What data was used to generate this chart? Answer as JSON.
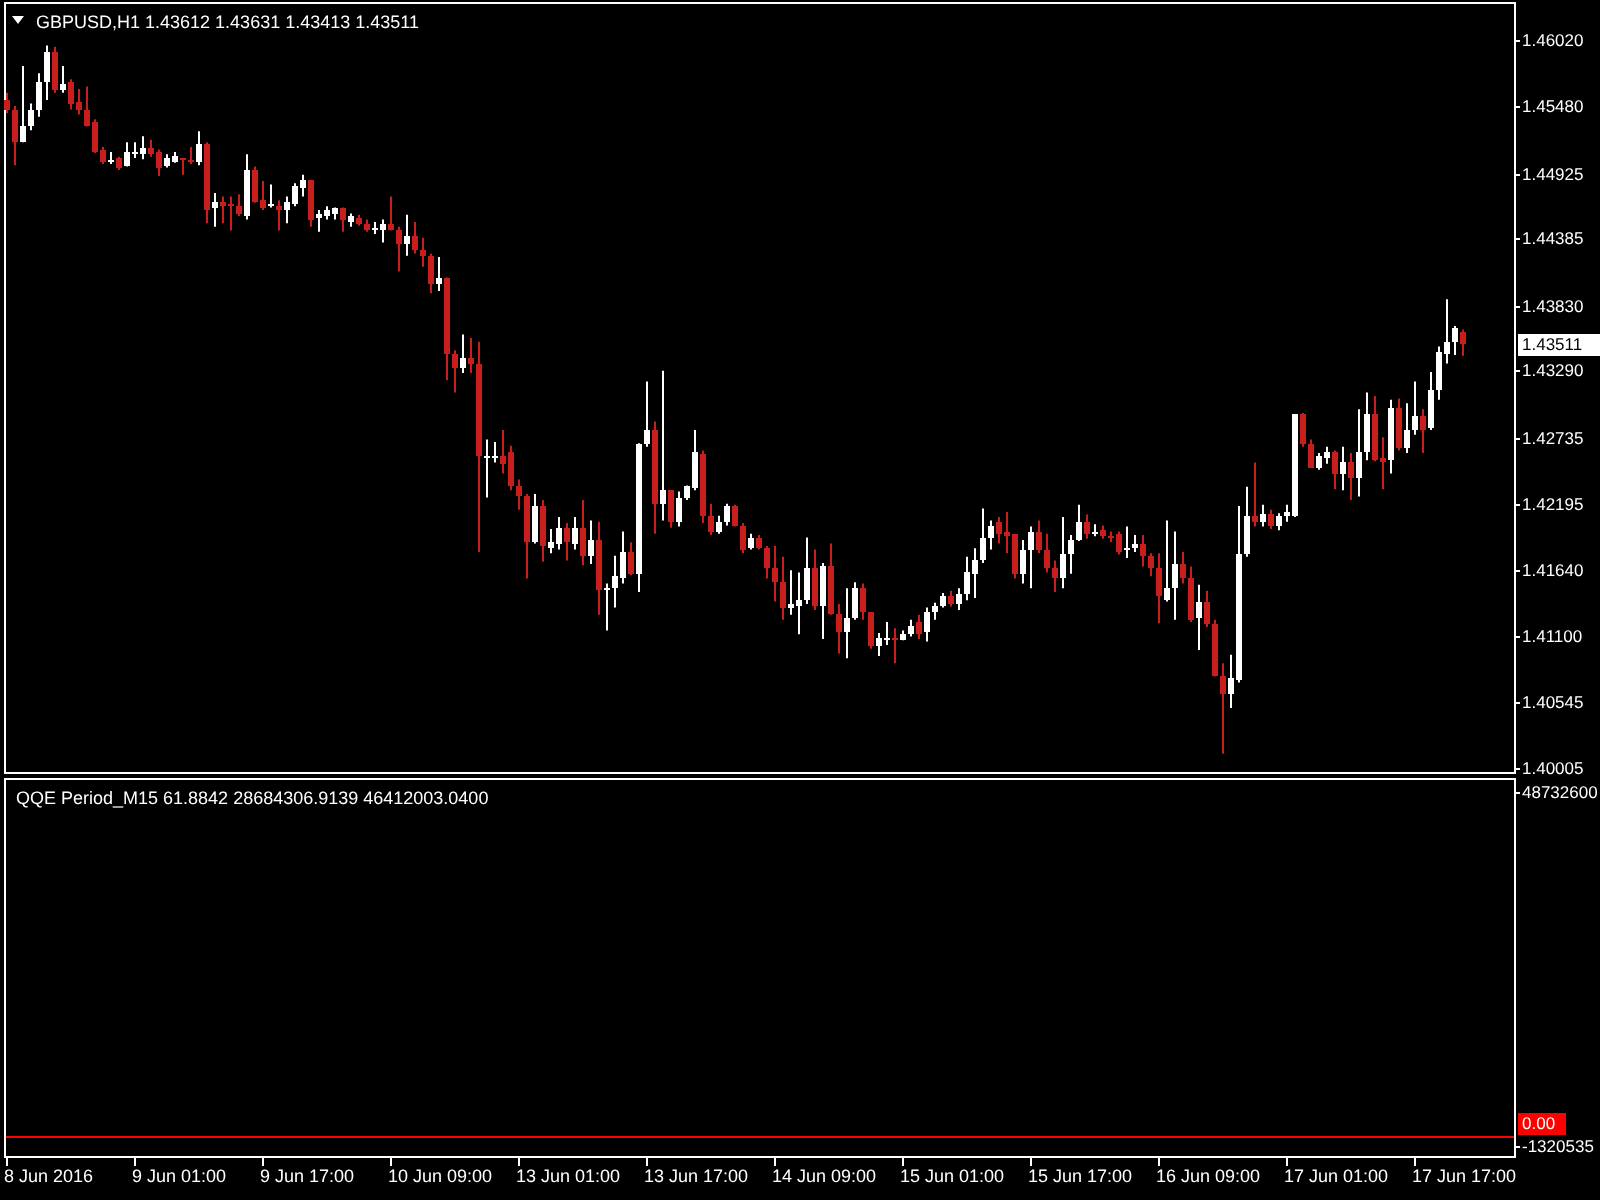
{
  "chart_data": [
    {
      "type": "candlestick",
      "title": "GBPUSD,H1 1.43612 1.43631 1.43413 1.43511",
      "categories": [
        null,
        null,
        null,
        null,
        null,
        null,
        null,
        null,
        null,
        null,
        null,
        null,
        null,
        null,
        null,
        null,
        null,
        null,
        null,
        null,
        null,
        null,
        null,
        null,
        null,
        null,
        null,
        null,
        null,
        null,
        null,
        null,
        null,
        null,
        null,
        null,
        null,
        null,
        null,
        null,
        null,
        null,
        null,
        null,
        null,
        null,
        null,
        null,
        null,
        null,
        null,
        null,
        null,
        null,
        null,
        null,
        null,
        null,
        null,
        null,
        null,
        null,
        null,
        null,
        null,
        null,
        null,
        null,
        null,
        null,
        null,
        null,
        null,
        null,
        null,
        null,
        null,
        null,
        null,
        null,
        null,
        null,
        null,
        null,
        null,
        null,
        null,
        null,
        null,
        null,
        null,
        null,
        null,
        null,
        null,
        null,
        null,
        null,
        null,
        null,
        null,
        null,
        null,
        null,
        null,
        null,
        null,
        null,
        null,
        null,
        null,
        null,
        null,
        null,
        null,
        null,
        null,
        null,
        null,
        null,
        null,
        null,
        null,
        null,
        null,
        null,
        null,
        null,
        null,
        null,
        null,
        null,
        null,
        null,
        null,
        null,
        null,
        null,
        null,
        null,
        null,
        null,
        null,
        null,
        null,
        null,
        null,
        null,
        null,
        null,
        null,
        null,
        null,
        null,
        null,
        null,
        null,
        null,
        null,
        null,
        null,
        null,
        null,
        null,
        null,
        null,
        null,
        null,
        null,
        null,
        null,
        null,
        null,
        null,
        null,
        null,
        null,
        null,
        null,
        null,
        null,
        null,
        null
      ],
      "ohlc": [
        [
          1.4553,
          1.4559,
          1.4542,
          1.4545
        ],
        [
          1.4545,
          1.4548,
          1.4499,
          1.4519
        ],
        [
          1.4519,
          1.4581,
          1.4518,
          1.4532
        ],
        [
          1.4531,
          1.455,
          1.4528,
          1.4545
        ],
        [
          1.4545,
          1.4575,
          1.4539,
          1.4567
        ],
        [
          1.4567,
          1.4598,
          1.4553,
          1.4593
        ],
        [
          1.4593,
          1.4597,
          1.4559,
          1.4562
        ],
        [
          1.4562,
          1.4581,
          1.4559,
          1.4566
        ],
        [
          1.4567,
          1.457,
          1.4545,
          1.455
        ],
        [
          1.4552,
          1.4562,
          1.4541,
          1.4544
        ],
        [
          1.4545,
          1.4564,
          1.4531,
          1.4532
        ],
        [
          1.4534,
          1.4537,
          1.4509,
          1.451
        ],
        [
          1.4512,
          1.4514,
          1.45,
          1.4501
        ],
        [
          1.4503,
          1.451,
          1.45,
          1.4504
        ],
        [
          1.4505,
          1.4506,
          1.4495,
          1.4496
        ],
        [
          1.4499,
          1.4518,
          1.4498,
          1.451
        ],
        [
          1.4509,
          1.4518,
          1.4505,
          1.451
        ],
        [
          1.4509,
          1.4523,
          1.4504,
          1.4514
        ],
        [
          1.4514,
          1.452,
          1.4506,
          1.4508
        ],
        [
          1.451,
          1.4512,
          1.449,
          1.4497
        ],
        [
          1.4499,
          1.4508,
          1.4497,
          1.4505
        ],
        [
          1.4502,
          1.451,
          1.4501,
          1.4506
        ],
        [
          1.4505,
          1.4505,
          1.4491,
          1.4504
        ],
        [
          1.4504,
          1.4514,
          1.45,
          1.4501
        ],
        [
          1.4501,
          1.4527,
          1.4499,
          1.4517
        ],
        [
          1.4517,
          1.4518,
          1.4451,
          1.4462
        ],
        [
          1.4463,
          1.4476,
          1.4448,
          1.4469
        ],
        [
          1.4469,
          1.4473,
          1.4451,
          1.4465
        ],
        [
          1.4467,
          1.4473,
          1.4445,
          1.4466
        ],
        [
          1.4465,
          1.4475,
          1.4457,
          1.4458
        ],
        [
          1.4457,
          1.4508,
          1.4454,
          1.4495
        ],
        [
          1.4495,
          1.4498,
          1.4468,
          1.4469
        ],
        [
          1.447,
          1.4486,
          1.4462,
          1.4464
        ],
        [
          1.4466,
          1.4483,
          1.4464,
          1.4467
        ],
        [
          1.4466,
          1.447,
          1.4445,
          1.4462
        ],
        [
          1.4462,
          1.4473,
          1.4451,
          1.4468
        ],
        [
          1.4467,
          1.4484,
          1.4465,
          1.4481
        ],
        [
          1.448,
          1.4491,
          1.4473,
          1.4486
        ],
        [
          1.4486,
          1.4486,
          1.4448,
          1.4453
        ],
        [
          1.4455,
          1.4462,
          1.4444,
          1.4459
        ],
        [
          1.4457,
          1.4465,
          1.4454,
          1.4462
        ],
        [
          1.4459,
          1.4464,
          1.4454,
          1.4463
        ],
        [
          1.4463,
          1.4464,
          1.4444,
          1.4453
        ],
        [
          1.4452,
          1.4459,
          1.4448,
          1.4457
        ],
        [
          1.4456,
          1.4458,
          1.4449,
          1.4451
        ],
        [
          1.4451,
          1.4454,
          1.4444,
          1.4445
        ],
        [
          1.4446,
          1.4452,
          1.4442,
          1.4447
        ],
        [
          1.4445,
          1.4454,
          1.4435,
          1.4451
        ],
        [
          1.445,
          1.4473,
          1.4445,
          1.4446
        ],
        [
          1.4446,
          1.4448,
          1.4411,
          1.4433
        ],
        [
          1.4433,
          1.4458,
          1.4424,
          1.4441
        ],
        [
          1.444,
          1.4452,
          1.4426,
          1.4429
        ],
        [
          1.4429,
          1.4439,
          1.4415,
          1.4424
        ],
        [
          1.4424,
          1.4426,
          1.4393,
          1.44
        ],
        [
          1.44,
          1.4423,
          1.4395,
          1.4406
        ],
        [
          1.4406,
          1.4406,
          1.4321,
          1.4343
        ],
        [
          1.4343,
          1.4346,
          1.4311,
          1.4331
        ],
        [
          1.4331,
          1.4359,
          1.4327,
          1.434
        ],
        [
          1.434,
          1.4356,
          1.4327,
          1.4334
        ],
        [
          1.4334,
          1.4353,
          1.4179,
          1.4258
        ],
        [
          1.4258,
          1.4272,
          1.4224,
          1.4259
        ],
        [
          1.4258,
          1.427,
          1.4253,
          1.4259
        ],
        [
          1.4259,
          1.428,
          1.4244,
          1.4251
        ],
        [
          1.4262,
          1.4267,
          1.423,
          1.4234
        ],
        [
          1.4234,
          1.4239,
          1.4214,
          1.4226
        ],
        [
          1.4226,
          1.4227,
          1.4157,
          1.4188
        ],
        [
          1.4188,
          1.4227,
          1.4186,
          1.4217
        ],
        [
          1.4217,
          1.4222,
          1.4171,
          1.4184
        ],
        [
          1.4182,
          1.4198,
          1.4178,
          1.4187
        ],
        [
          1.4186,
          1.4208,
          1.4181,
          1.4199
        ],
        [
          1.4199,
          1.4203,
          1.4172,
          1.4187
        ],
        [
          1.4186,
          1.4208,
          1.4181,
          1.4199
        ],
        [
          1.4199,
          1.4222,
          1.4168,
          1.4176
        ],
        [
          1.4176,
          1.4205,
          1.4169,
          1.4189
        ],
        [
          1.4189,
          1.4204,
          1.4127,
          1.4147
        ],
        [
          1.4149,
          1.4153,
          1.4114,
          1.415
        ],
        [
          1.415,
          1.4176,
          1.4133,
          1.4159
        ],
        [
          1.4158,
          1.4196,
          1.4153,
          1.4179
        ],
        [
          1.4179,
          1.4187,
          1.416,
          1.4161
        ],
        [
          1.416,
          1.4269,
          1.4146,
          1.4269
        ],
        [
          1.4269,
          1.432,
          1.4266,
          1.428
        ],
        [
          1.428,
          1.4287,
          1.4194,
          1.4219
        ],
        [
          1.4219,
          1.4329,
          1.4205,
          1.423
        ],
        [
          1.423,
          1.423,
          1.4199,
          1.4204
        ],
        [
          1.4204,
          1.4229,
          1.42,
          1.4224
        ],
        [
          1.4224,
          1.4234,
          1.4222,
          1.4234
        ],
        [
          1.4232,
          1.428,
          1.423,
          1.4262
        ],
        [
          1.426,
          1.4263,
          1.4203,
          1.4209
        ],
        [
          1.4209,
          1.4219,
          1.4193,
          1.4196
        ],
        [
          1.4196,
          1.4209,
          1.4194,
          1.4204
        ],
        [
          1.4203,
          1.4219,
          1.4201,
          1.4217
        ],
        [
          1.4217,
          1.4218,
          1.42,
          1.4201
        ],
        [
          1.4201,
          1.4203,
          1.4178,
          1.4181
        ],
        [
          1.4182,
          1.4194,
          1.4181,
          1.4191
        ],
        [
          1.4191,
          1.4193,
          1.4181,
          1.4183
        ],
        [
          1.4183,
          1.4184,
          1.4157,
          1.4165
        ],
        [
          1.4165,
          1.4184,
          1.4138,
          1.4155
        ],
        [
          1.4155,
          1.4175,
          1.4123,
          1.4132
        ],
        [
          1.4132,
          1.4164,
          1.4127,
          1.4136
        ],
        [
          1.4135,
          1.4162,
          1.4111,
          1.414
        ],
        [
          1.414,
          1.4191,
          1.4136,
          1.4165
        ],
        [
          1.4165,
          1.4181,
          1.4131,
          1.4134
        ],
        [
          1.4134,
          1.417,
          1.4107,
          1.4167
        ],
        [
          1.4167,
          1.4186,
          1.4127,
          1.4128
        ],
        [
          1.4128,
          1.4136,
          1.4095,
          1.4112
        ],
        [
          1.4112,
          1.4149,
          1.4091,
          1.4125
        ],
        [
          1.4125,
          1.4154,
          1.4123,
          1.4149
        ],
        [
          1.4149,
          1.4153,
          1.4123,
          1.4129
        ],
        [
          1.4129,
          1.4129,
          1.4099,
          1.4102
        ],
        [
          1.4102,
          1.4112,
          1.4093,
          1.4108
        ],
        [
          1.4107,
          1.4121,
          1.4102,
          1.4108
        ],
        [
          1.4108,
          1.4116,
          1.4087,
          1.4107
        ],
        [
          1.4107,
          1.4114,
          1.4106,
          1.4111
        ],
        [
          1.4111,
          1.4123,
          1.4109,
          1.4117
        ],
        [
          1.4121,
          1.4127,
          1.4107,
          1.4111
        ],
        [
          1.4112,
          1.4133,
          1.4105,
          1.4129
        ],
        [
          1.4129,
          1.4137,
          1.4123,
          1.4135
        ],
        [
          1.4134,
          1.4145,
          1.4133,
          1.4143
        ],
        [
          1.4143,
          1.4147,
          1.4134,
          1.4136
        ],
        [
          1.4136,
          1.4149,
          1.4131,
          1.4145
        ],
        [
          1.4144,
          1.4175,
          1.4139,
          1.4162
        ],
        [
          1.4161,
          1.4182,
          1.4141,
          1.4172
        ],
        [
          1.4172,
          1.4215,
          1.417,
          1.419
        ],
        [
          1.419,
          1.4205,
          1.4181,
          1.4201
        ],
        [
          1.4203,
          1.4208,
          1.4186,
          1.4194
        ],
        [
          1.4196,
          1.4212,
          1.4178,
          1.4192
        ],
        [
          1.4194,
          1.4194,
          1.4157,
          1.416
        ],
        [
          1.416,
          1.4189,
          1.4153,
          1.4181
        ],
        [
          1.4181,
          1.42,
          1.4149,
          1.4196
        ],
        [
          1.4196,
          1.4205,
          1.4178,
          1.4181
        ],
        [
          1.4181,
          1.4194,
          1.4162,
          1.4166
        ],
        [
          1.4166,
          1.4172,
          1.4146,
          1.4158
        ],
        [
          1.4158,
          1.4208,
          1.4149,
          1.4177
        ],
        [
          1.4177,
          1.4193,
          1.4161,
          1.4189
        ],
        [
          1.4189,
          1.4218,
          1.4188,
          1.4203
        ],
        [
          1.4203,
          1.421,
          1.419,
          1.4194
        ],
        [
          1.4194,
          1.4202,
          1.4192,
          1.4195
        ],
        [
          1.4198,
          1.4201,
          1.419,
          1.4193
        ],
        [
          1.4193,
          1.4196,
          1.4187,
          1.419
        ],
        [
          1.4194,
          1.4196,
          1.4177,
          1.4179
        ],
        [
          1.4181,
          1.42,
          1.4174,
          1.4182
        ],
        [
          1.4182,
          1.4193,
          1.4179,
          1.4186
        ],
        [
          1.4186,
          1.4193,
          1.4167,
          1.4175
        ],
        [
          1.4175,
          1.4178,
          1.4159,
          1.4165
        ],
        [
          1.4165,
          1.4178,
          1.412,
          1.4142
        ],
        [
          1.414,
          1.4205,
          1.4138,
          1.415
        ],
        [
          1.415,
          1.4196,
          1.4123,
          1.4169
        ],
        [
          1.4169,
          1.4179,
          1.4153,
          1.4158
        ],
        [
          1.4158,
          1.4167,
          1.4121,
          1.4123
        ],
        [
          1.4124,
          1.4152,
          1.4098,
          1.4137
        ],
        [
          1.4137,
          1.4147,
          1.4117,
          1.412
        ],
        [
          1.412,
          1.4123,
          1.4076,
          1.4077
        ],
        [
          1.4077,
          1.4087,
          1.4012,
          1.4062
        ],
        [
          1.4062,
          1.4094,
          1.405,
          1.4074
        ],
        [
          1.4073,
          1.4217,
          1.4071,
          1.4177
        ],
        [
          1.4177,
          1.4233,
          1.4175,
          1.4208
        ],
        [
          1.4208,
          1.4253,
          1.42,
          1.4204
        ],
        [
          1.4204,
          1.4218,
          1.42,
          1.4211
        ],
        [
          1.4211,
          1.4214,
          1.4198,
          1.42
        ],
        [
          1.42,
          1.4211,
          1.4197,
          1.4209
        ],
        [
          1.4209,
          1.4218,
          1.4204,
          1.4212
        ],
        [
          1.4209,
          1.4293,
          1.4208,
          1.4293
        ],
        [
          1.4293,
          1.4294,
          1.4266,
          1.4269
        ],
        [
          1.4269,
          1.4272,
          1.4249,
          1.4249
        ],
        [
          1.4249,
          1.4261,
          1.4247,
          1.4258
        ],
        [
          1.4256,
          1.4266,
          1.4252,
          1.4261
        ],
        [
          1.4261,
          1.4263,
          1.4231,
          1.4243
        ],
        [
          1.4243,
          1.4266,
          1.423,
          1.4253
        ],
        [
          1.4253,
          1.4261,
          1.4222,
          1.424
        ],
        [
          1.424,
          1.4297,
          1.4225,
          1.4261
        ],
        [
          1.4261,
          1.4311,
          1.4255,
          1.4293
        ],
        [
          1.4293,
          1.4308,
          1.4254,
          1.4255
        ],
        [
          1.4257,
          1.4274,
          1.4231,
          1.4254
        ],
        [
          1.4255,
          1.4305,
          1.4244,
          1.4298
        ],
        [
          1.4298,
          1.4306,
          1.4263,
          1.4265
        ],
        [
          1.4265,
          1.4302,
          1.4261,
          1.428
        ],
        [
          1.428,
          1.432,
          1.4276,
          1.4291
        ],
        [
          1.4291,
          1.4297,
          1.4261,
          1.428
        ],
        [
          1.4282,
          1.4328,
          1.428,
          1.4313
        ],
        [
          1.4313,
          1.4349,
          1.4305,
          1.4345
        ],
        [
          1.4343,
          1.4388,
          1.4335,
          1.4353
        ],
        [
          1.4353,
          1.4366,
          1.4342,
          1.4364
        ],
        [
          1.43612,
          1.43631,
          1.43413,
          1.43511
        ]
      ],
      "colors": [
        "#c81e1e",
        "#c81e1e",
        "#ffffff",
        "#ffffff",
        "#ffffff",
        "#ffffff",
        "#c81e1e",
        "#ffffff",
        "#c81e1e",
        "#c81e1e",
        "#c81e1e",
        "#c81e1e",
        "#c81e1e",
        "#ffffff",
        "#c81e1e",
        "#ffffff",
        "#ffffff",
        "#ffffff",
        "#c81e1e",
        "#c81e1e",
        "#ffffff",
        "#ffffff",
        "#c81e1e",
        "#c81e1e",
        "#ffffff",
        "#c81e1e",
        "#ffffff",
        "#c81e1e",
        "#c81e1e",
        "#c81e1e",
        "#ffffff",
        "#c81e1e",
        "#c81e1e",
        "#ffffff",
        "#c81e1e",
        "#ffffff",
        "#ffffff",
        "#ffffff",
        "#c81e1e",
        "#ffffff",
        "#ffffff",
        "#ffffff",
        "#c81e1e",
        "#ffffff",
        "#c81e1e",
        "#c81e1e",
        "#ffffff",
        "#ffffff",
        "#c81e1e",
        "#c81e1e",
        "#ffffff",
        "#c81e1e",
        "#c81e1e",
        "#c81e1e",
        "#ffffff",
        "#c81e1e",
        "#c81e1e",
        "#ffffff",
        "#c81e1e",
        "#c81e1e",
        "#ffffff",
        "#ffffff",
        "#c81e1e",
        "#c81e1e",
        "#c81e1e",
        "#c81e1e",
        "#ffffff",
        "#c81e1e",
        "#ffffff",
        "#ffffff",
        "#c81e1e",
        "#ffffff",
        "#c81e1e",
        "#ffffff",
        "#c81e1e",
        "#ffffff",
        "#ffffff",
        "#ffffff",
        "#c81e1e",
        "#ffffff",
        "#ffffff",
        "#c81e1e",
        "#ffffff",
        "#c81e1e",
        "#ffffff",
        "#ffffff",
        "#ffffff",
        "#c81e1e",
        "#c81e1e",
        "#ffffff",
        "#ffffff",
        "#c81e1e",
        "#c81e1e",
        "#ffffff",
        "#c81e1e",
        "#c81e1e",
        "#c81e1e",
        "#c81e1e",
        "#ffffff",
        "#ffffff",
        "#ffffff",
        "#c81e1e",
        "#ffffff",
        "#c81e1e",
        "#c81e1e",
        "#ffffff",
        "#ffffff",
        "#c81e1e",
        "#c81e1e",
        "#ffffff",
        "#ffffff",
        "#c81e1e",
        "#ffffff",
        "#ffffff",
        "#c81e1e",
        "#ffffff",
        "#ffffff",
        "#ffffff",
        "#c81e1e",
        "#ffffff",
        "#ffffff",
        "#ffffff",
        "#ffffff",
        "#ffffff",
        "#c81e1e",
        "#c81e1e",
        "#c81e1e",
        "#ffffff",
        "#ffffff",
        "#c81e1e",
        "#c81e1e",
        "#c81e1e",
        "#ffffff",
        "#ffffff",
        "#ffffff",
        "#c81e1e",
        "#ffffff",
        "#c81e1e",
        "#c81e1e",
        "#c81e1e",
        "#ffffff",
        "#ffffff",
        "#c81e1e",
        "#c81e1e",
        "#c81e1e",
        "#ffffff",
        "#ffffff",
        "#c81e1e",
        "#c81e1e",
        "#ffffff",
        "#c81e1e",
        "#c81e1e",
        "#c81e1e",
        "#ffffff",
        "#ffffff",
        "#ffffff",
        "#c81e1e",
        "#ffffff",
        "#c81e1e",
        "#ffffff",
        "#ffffff",
        "#ffffff",
        "#c81e1e",
        "#c81e1e",
        "#ffffff",
        "#ffffff",
        "#c81e1e",
        "#ffffff",
        "#c81e1e",
        "#ffffff",
        "#ffffff",
        "#c81e1e",
        "#c81e1e",
        "#ffffff",
        "#c81e1e",
        "#ffffff",
        "#ffffff",
        "#c81e1e",
        "#ffffff",
        "#ffffff",
        "#ffffff",
        "#ffffff",
        "#c81e1e"
      ],
      "ylim": [
        1.3997,
        1.4634
      ],
      "yticks": [
        {
          "value": 1.4602,
          "label": "1.46020"
        },
        {
          "value": 1.4548,
          "label": "1.45480"
        },
        1.44925,
        1.44385,
        {
          "value": 1.4383,
          "label": "1.43830"
        },
        {
          "value": 1.4329,
          "label": "1.43290"
        },
        1.42735,
        1.42195,
        {
          "value": 1.4164,
          "label": "1.41640"
        },
        {
          "value": 1.411,
          "label": "1.41100"
        },
        1.40545,
        1.40005
      ],
      "tick_labels": "y",
      "annotations": [
        "1.43511"
      ]
    },
    {
      "type": "line",
      "title": "QQE Period_M15 61.8842 28684306.9139 46412003.0400",
      "categories": [
        "8 Jun 2016",
        null,
        null,
        null,
        null,
        null,
        null,
        null,
        null,
        null,
        null,
        null,
        null,
        null,
        null,
        null,
        "9 Jun 01:00",
        null,
        null,
        null,
        null,
        null,
        null,
        null,
        null,
        null,
        null,
        null,
        null,
        null,
        null,
        null,
        "9 Jun 17:00",
        null,
        null,
        null,
        null,
        null,
        null,
        null,
        null,
        null,
        null,
        null,
        null,
        null,
        null,
        null,
        "10 Jun 09:00",
        null,
        null,
        null,
        null,
        null,
        null,
        null,
        null,
        null,
        null,
        null,
        null,
        null,
        null,
        null,
        "13 Jun 01:00",
        null,
        null,
        null,
        null,
        null,
        null,
        null,
        null,
        null,
        null,
        null,
        null,
        null,
        null,
        null,
        "13 Jun 17:00",
        null,
        null,
        null,
        null,
        null,
        null,
        null,
        null,
        null,
        null,
        null,
        null,
        null,
        null,
        null,
        "14 Jun 09:00",
        null,
        null,
        null,
        null,
        null,
        null,
        null,
        null,
        null,
        null,
        null,
        null,
        null,
        null,
        null,
        "15 Jun 01:00",
        null,
        null,
        null,
        null,
        null,
        null,
        null,
        null,
        null,
        null,
        null,
        null,
        null,
        null,
        null,
        "15 Jun 17:00",
        null,
        null,
        null,
        null,
        null,
        null,
        null,
        null,
        null,
        null,
        null,
        null,
        null,
        null,
        null,
        "16 Jun 09:00",
        null,
        null,
        null,
        null,
        null,
        null,
        null,
        null,
        null,
        null,
        null,
        null,
        null,
        null,
        null,
        "17 Jun 01:00",
        null,
        null,
        null,
        null,
        null,
        null,
        null,
        null,
        null,
        null,
        null,
        null,
        null,
        null,
        null,
        "17 Jun 17:00",
        null,
        null,
        null,
        null,
        null,
        null
      ],
      "ylim": [
        -2700000,
        50700000
      ],
      "yticks": [
        48732600,
        -1320535
      ],
      "ref_lines": [
        {
          "axis": "y",
          "value": 0,
          "label": "0.00",
          "color": "#ff0000"
        }
      ]
    }
  ]
}
